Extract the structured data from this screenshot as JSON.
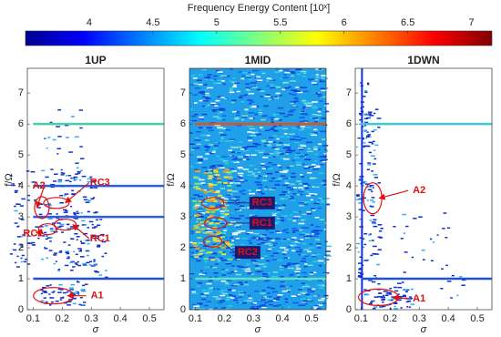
{
  "chart_data": [
    {
      "type": "scatter",
      "title": "1UP",
      "x_label": "σ",
      "y_label": "f/Ω",
      "xlim": [
        0.08,
        0.55
      ],
      "xticks": [
        0.1,
        0.2,
        0.3,
        0.4,
        0.5
      ],
      "ylim": [
        0,
        7.8
      ],
      "yticks": [
        0,
        1,
        2,
        3,
        4,
        5,
        6,
        7
      ],
      "bands": [
        {
          "f": 6,
          "color": "#46d0a0"
        },
        {
          "f": 4,
          "color": "#2a5ee0"
        },
        {
          "f": 3,
          "color": "#2a5ee0"
        },
        {
          "f": 1,
          "color": "#2050e0"
        }
      ],
      "annotations": [
        "A1",
        "A2",
        "RC3",
        "RC2",
        "RC1"
      ]
    },
    {
      "type": "scatter",
      "title": "1MID",
      "x_label": "σ",
      "y_label": "f/Ω",
      "xlim": [
        0.08,
        0.55
      ],
      "xticks": [
        0.1,
        0.2,
        0.3,
        0.4,
        0.5
      ],
      "ylim": [
        0,
        7.8
      ],
      "yticks": [
        0,
        1,
        2,
        3,
        4,
        5,
        6,
        7
      ],
      "bands": [
        {
          "f": 6,
          "color": "#e8501a"
        },
        {
          "f": 1,
          "color": "#60e0c0"
        }
      ],
      "annotations": [
        "RC3",
        "RC1",
        "RC2"
      ]
    },
    {
      "type": "scatter",
      "title": "1DWN",
      "x_label": "σ",
      "y_label": "f/Ω",
      "xlim": [
        0.08,
        0.55
      ],
      "xticks": [
        0.1,
        0.2,
        0.3,
        0.4,
        0.5
      ],
      "ylim": [
        0,
        7.8
      ],
      "yticks": [
        0,
        1,
        2,
        3,
        4,
        5,
        6,
        7
      ],
      "bands": [
        {
          "f": 6,
          "color": "#3cc8d8"
        },
        {
          "f": 1,
          "color": "#2050e0"
        }
      ],
      "annotations": [
        "A2",
        "A1"
      ]
    },
    {
      "type": "colorbar",
      "title": "Frequency Energy Content [10ˣ]",
      "lim": [
        3.5,
        7.16
      ],
      "ticks": [
        4,
        4.5,
        5,
        5.5,
        6,
        6.5,
        7
      ]
    }
  ]
}
